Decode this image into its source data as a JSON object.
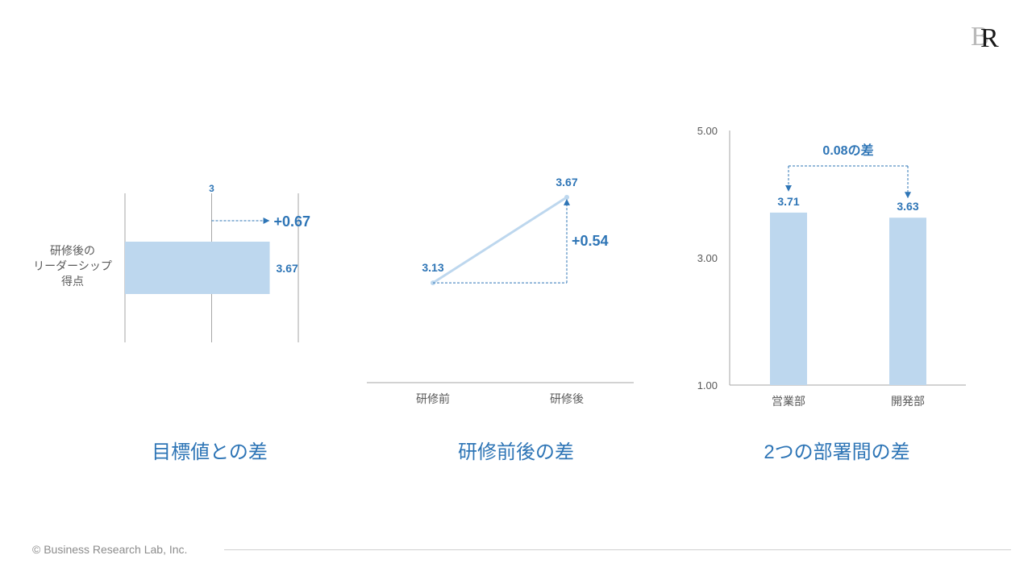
{
  "logo": {
    "mark1": "B",
    "mark2": "R"
  },
  "captions": {
    "target": "目標値との差",
    "prepost": "研修前後の差",
    "departments": "2つの部署間の差"
  },
  "footer": {
    "copyright": "© Business Research Lab, Inc."
  },
  "colors": {
    "bar": "#bdd7ee",
    "accent": "#2e75b6",
    "axis": "#a6a6a6",
    "text": "#595959"
  },
  "chart_data": [
    {
      "type": "bar",
      "orientation": "horizontal",
      "categories": [
        "研修後の\nリーダーシップ\n得点"
      ],
      "values": [
        3.67
      ],
      "value_labels": [
        "3.67"
      ],
      "target": 3,
      "target_label": "3",
      "delta_label": "+0.67",
      "xlim": [
        2,
        4
      ]
    },
    {
      "type": "line",
      "categories": [
        "研修前",
        "研修後"
      ],
      "values": [
        3.13,
        3.67
      ],
      "value_labels": [
        "3.13",
        "3.67"
      ],
      "delta_label": "+0.54",
      "ylim": [
        2.5,
        4.0
      ]
    },
    {
      "type": "bar",
      "categories": [
        "営業部",
        "開発部"
      ],
      "values": [
        3.71,
        3.63
      ],
      "value_labels": [
        "3.71",
        "3.63"
      ],
      "ylim": [
        1.0,
        5.0
      ],
      "yticks": [
        "1.00",
        "3.00",
        "5.00"
      ],
      "annotation": "0.08の差"
    }
  ]
}
